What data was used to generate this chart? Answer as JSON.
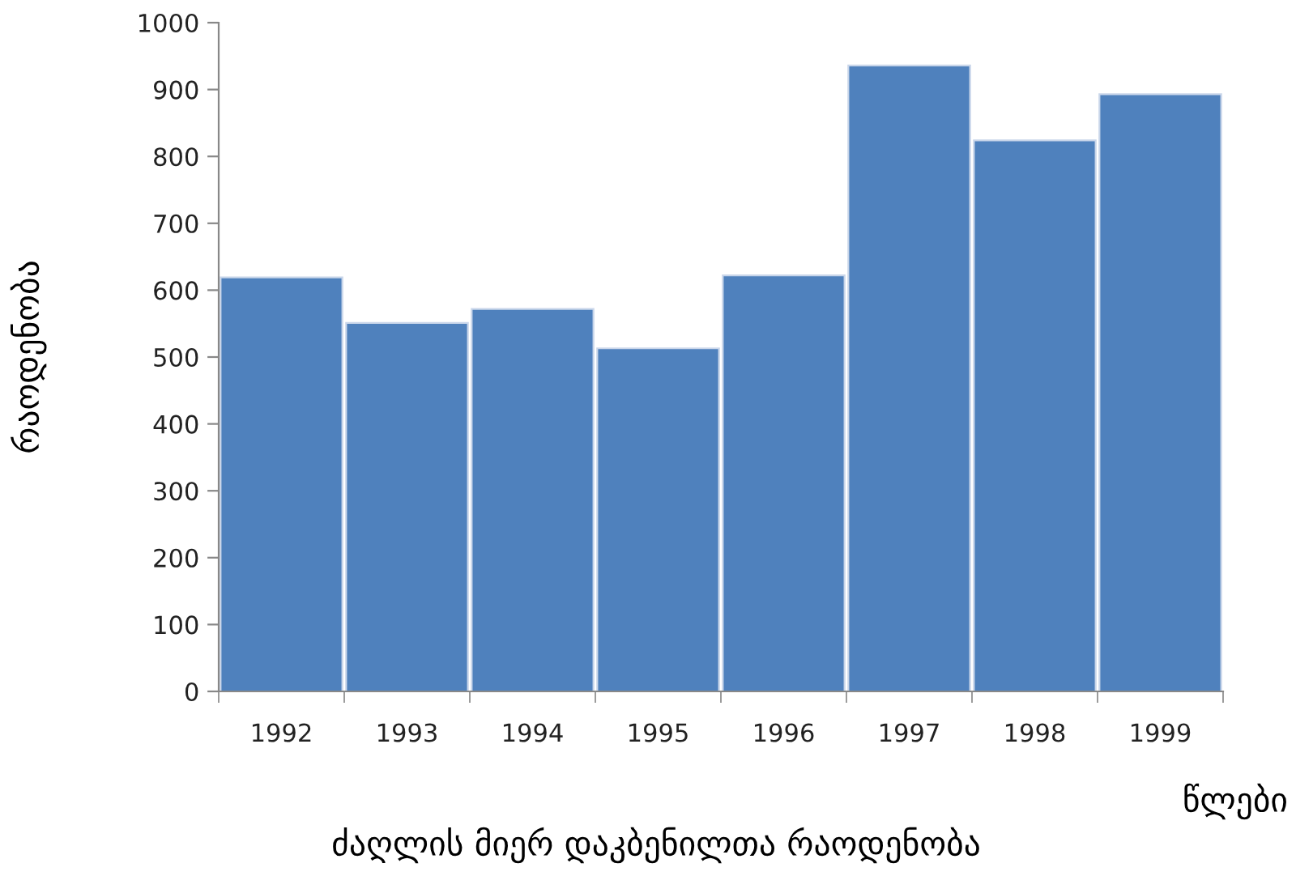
{
  "chart_data": {
    "type": "bar",
    "title": "ძაღლის მიერ დაკბენილთა რაოდენობა",
    "xlabel": "წლები",
    "ylabel": "რაოდენობა",
    "categories": [
      "1992",
      "1993",
      "1994",
      "1995",
      "1996",
      "1997",
      "1998",
      "1999"
    ],
    "values": [
      619,
      551,
      572,
      513,
      622,
      936,
      824,
      893
    ],
    "color": "#4f81bd",
    "ylim": [
      0,
      1000
    ],
    "yticks": [
      0,
      100,
      200,
      300,
      400,
      500,
      600,
      700,
      800,
      900,
      1000
    ],
    "grid": false
  }
}
